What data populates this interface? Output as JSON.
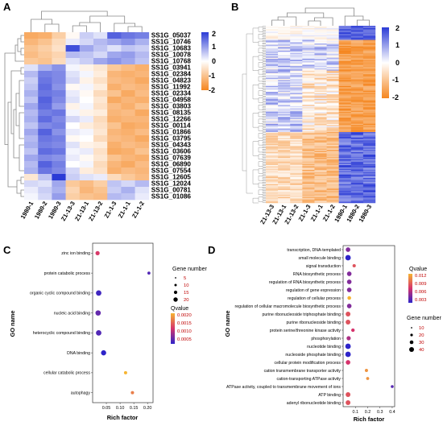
{
  "panels": {
    "A": {
      "letter": "A",
      "genes": [
        "SS1G_05037",
        "SS1G_10746",
        "SS1G_10683",
        "SS1G_10078",
        "SS1G_10768",
        "SS1G_03941",
        "SS1G_02384",
        "SS1G_04823",
        "SS1G_11992",
        "SS1G_02334",
        "SS1G_04958",
        "SS1G_03803",
        "SS1G_08135",
        "SS1G_12266",
        "SS1G_00114",
        "SS1G_01866",
        "SS1G_03795",
        "SS1G_04343",
        "SS1G_03606",
        "SS1G_07639",
        "SS1G_06890",
        "SS1G_07554",
        "SS1G_12605",
        "SS1G_12024",
        "SS1G_00781",
        "SS1G_01086"
      ],
      "samples": [
        "1980-1",
        "1980-2",
        "1980-3",
        "Z1-13-3",
        "Z1-13-1",
        "Z1-13-2",
        "Z1-1-3",
        "Z1-1-1",
        "Z1-1-2"
      ],
      "colorbar": {
        "max_label": "2",
        "mid_high": "1",
        "mid": "0",
        "mid_low": "-1",
        "min_label": "-2",
        "high_color": "#2b3bd6",
        "mid_color": "#ffffff",
        "low_color": "#f5861f"
      },
      "values": [
        [
          -1.4,
          -1.3,
          -0.8,
          -0.1,
          0.5,
          0.3,
          1.6,
          1.4,
          1.3
        ],
        [
          -1.2,
          -1.0,
          -0.6,
          0.2,
          0.4,
          0.7,
          0.9,
          1.1,
          0.8
        ],
        [
          -1.0,
          -0.8,
          -0.5,
          1.8,
          0.9,
          0.6,
          0.3,
          0.6,
          0.5
        ],
        [
          -1.1,
          -0.9,
          -0.7,
          0.7,
          0.6,
          0.4,
          0.9,
          1.0,
          0.7
        ],
        [
          -0.9,
          -1.0,
          -0.6,
          0.3,
          0.5,
          0.9,
          1.1,
          0.9,
          0.6
        ],
        [
          0.3,
          0.8,
          1.1,
          0.1,
          -0.2,
          -0.4,
          -0.9,
          -1.1,
          -1.3
        ],
        [
          0.7,
          1.3,
          1.2,
          0.3,
          0.1,
          -0.3,
          -1.2,
          -1.3,
          -1.2
        ],
        [
          0.5,
          1.4,
          1.2,
          0.4,
          -0.2,
          -0.5,
          -1.1,
          -1.2,
          -1.4
        ],
        [
          0.6,
          1.5,
          1.1,
          -0.1,
          0.1,
          -0.3,
          -1.3,
          -1.1,
          -1.2
        ],
        [
          0.8,
          1.4,
          1.3,
          0.2,
          -0.1,
          -0.6,
          -1.0,
          -1.4,
          -1.1
        ],
        [
          0.6,
          1.6,
          1.2,
          0.3,
          0.0,
          -0.4,
          -1.4,
          -1.2,
          -1.3
        ],
        [
          0.9,
          1.5,
          1.0,
          -0.2,
          0.1,
          -0.5,
          -1.1,
          -1.3,
          -1.0
        ],
        [
          0.7,
          1.3,
          1.4,
          0.1,
          -0.2,
          -0.3,
          -1.2,
          -1.1,
          -1.4
        ],
        [
          0.8,
          1.5,
          1.2,
          0.4,
          0.2,
          -0.6,
          -1.3,
          -1.2,
          -1.2
        ],
        [
          0.6,
          1.2,
          1.3,
          0.0,
          -0.3,
          -0.5,
          -1.0,
          -1.4,
          -1.3
        ],
        [
          0.9,
          1.6,
          1.1,
          0.2,
          0.1,
          -0.4,
          -1.2,
          -1.3,
          -1.1
        ],
        [
          0.7,
          1.4,
          1.3,
          -0.1,
          0.0,
          -0.6,
          -1.1,
          -1.2,
          -1.4
        ],
        [
          0.8,
          1.3,
          1.2,
          0.3,
          -0.2,
          -0.3,
          -1.3,
          -1.1,
          -1.2
        ],
        [
          0.6,
          1.5,
          1.4,
          0.1,
          0.2,
          -0.5,
          -1.4,
          -1.3,
          -1.0
        ],
        [
          0.9,
          1.2,
          1.1,
          0.2,
          -0.1,
          -0.4,
          -1.0,
          -1.2,
          -1.3
        ],
        [
          0.7,
          1.6,
          1.3,
          0.0,
          0.1,
          -0.6,
          -1.2,
          -1.4,
          -1.1
        ],
        [
          0.8,
          1.4,
          1.2,
          0.4,
          -0.3,
          -0.5,
          -1.3,
          -1.1,
          -1.2
        ],
        [
          -0.4,
          0.6,
          2.0,
          0.5,
          0.3,
          0.2,
          -0.6,
          -0.9,
          -1.1
        ],
        [
          0.4,
          0.3,
          0.9,
          -0.9,
          -1.1,
          -0.8,
          0.6,
          0.4,
          0.7
        ],
        [
          0.2,
          0.5,
          0.8,
          -0.7,
          -1.2,
          -1.0,
          0.5,
          0.8,
          0.3
        ],
        [
          0.1,
          0.4,
          1.0,
          -0.8,
          -1.0,
          -1.1,
          0.7,
          0.6,
          0.2
        ]
      ]
    },
    "B": {
      "letter": "B",
      "samples": [
        "Z1-13-3",
        "Z1-13-1",
        "Z1-13-2",
        "Z1-1-3",
        "Z1-1-1",
        "Z1-1-2",
        "1980-1",
        "1980-2",
        "1980-3"
      ],
      "colorbar": {
        "max_label": "2",
        "mid_high": "1",
        "mid": "0",
        "mid_low": "-1",
        "min_label": "-2"
      }
    },
    "C": {
      "letter": "C",
      "ylabel": "GO name",
      "xlabel": "Rich factor",
      "size_legend_title": "Gene number",
      "size_legend_values": [
        "5",
        "10",
        "15",
        "20"
      ],
      "color_legend_title": "Qvalue",
      "color_legend_ticks": [
        "0.0020",
        "0.0015",
        "0.0010",
        "0.0005"
      ],
      "xticks": [
        "0.05",
        "0.10",
        "0.15",
        "0.20"
      ]
    },
    "D": {
      "letter": "D",
      "ylabel": "GO name",
      "xlabel": "Rich factor",
      "size_legend_title": "Gene number",
      "size_legend_values": [
        "10",
        "20",
        "30",
        "40"
      ],
      "color_legend_title": "Qvalue",
      "color_legend_ticks": [
        "0.012",
        "0.009",
        "0.006",
        "0.003"
      ],
      "xticks": [
        "0.1",
        "0.2",
        "0.3",
        "0.4"
      ]
    }
  },
  "chart_data": [
    {
      "type": "scatter",
      "panel": "C",
      "xlabel": "Rich factor",
      "ylabel": "GO name",
      "xlim": [
        0.0,
        0.22
      ],
      "categories": [
        "zinc ion binding",
        "protein catabolic process",
        "organic cyclic compound binding",
        "nucleic acid binding",
        "heterocyclic compound binding",
        "DNA binding",
        "cellular catabolic process",
        "autophagy"
      ],
      "x": [
        0.018,
        0.205,
        0.022,
        0.02,
        0.022,
        0.04,
        0.12,
        0.145
      ],
      "gene_number": [
        9,
        2,
        22,
        20,
        22,
        18,
        3,
        3
      ],
      "qvalue": [
        0.0011,
        0.0003,
        0.0002,
        0.0004,
        0.0003,
        0.0001,
        0.002,
        0.0016
      ]
    },
    {
      "type": "scatter",
      "panel": "D",
      "xlabel": "Rich factor",
      "ylabel": "GO name",
      "xlim": [
        0.0,
        0.42
      ],
      "categories": [
        "transcription, DNA-templated",
        "small molecule binding",
        "signal transduction",
        "RNA biosynthetic process",
        "regulation of RNA biosynthetic process",
        "regulation of gene expression",
        "regulation of cellular process",
        "regulation of cellular macromolecule biosynthetic process",
        "purine ribonucleoside triphosphate binding",
        "purine ribonucleoside binding",
        "protein serine/threonine kinase activity",
        "phosphorylation",
        "nucleotide binding",
        "nucleoside phosphate binding",
        "cellular protein modification process",
        "cation transmembrane transporter activity",
        "cation-transporting ATPase activity",
        "ATPase activity, coupled to transmembrane movement of ions",
        "ATP binding",
        "adenyl ribonucleotide binding"
      ],
      "x": [
        0.04,
        0.04,
        0.09,
        0.05,
        0.05,
        0.05,
        0.05,
        0.05,
        0.04,
        0.04,
        0.08,
        0.045,
        0.04,
        0.04,
        0.04,
        0.19,
        0.2,
        0.4,
        0.04,
        0.04
      ],
      "gene_number": [
        22,
        40,
        6,
        22,
        22,
        23,
        10,
        22,
        26,
        26,
        8,
        16,
        40,
        40,
        22,
        5,
        4,
        3,
        26,
        26
      ],
      "qvalue": [
        0.004,
        0.002,
        0.007,
        0.004,
        0.004,
        0.004,
        0.01,
        0.004,
        0.007,
        0.007,
        0.006,
        0.005,
        0.002,
        0.002,
        0.006,
        0.009,
        0.009,
        0.003,
        0.007,
        0.007
      ]
    }
  ]
}
